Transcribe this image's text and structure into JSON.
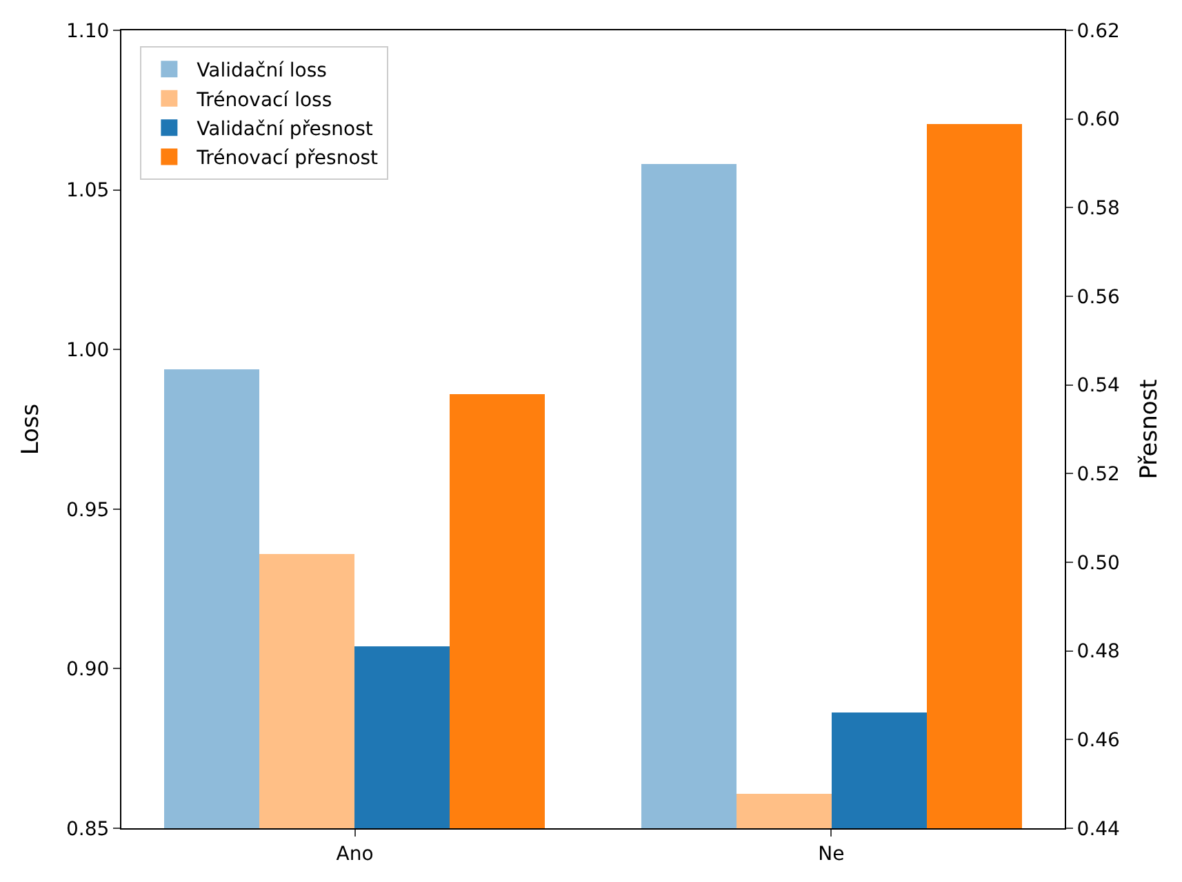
{
  "chart_data": {
    "type": "bar",
    "categories": [
      "Ano",
      "Ne"
    ],
    "ylabel": "Loss",
    "y2label": "Přesnost",
    "ylim": [
      0.85,
      1.1
    ],
    "yticks": [
      0.85,
      {
        "value": 0.9,
        "label": "0.90"
      },
      0.95,
      {
        "value": 1.0,
        "label": "1.00"
      },
      1.05,
      {
        "value": 1.1,
        "label": "1.10"
      }
    ],
    "y2lim": [
      0.44,
      0.62
    ],
    "y2ticks": [
      0.44,
      0.46,
      0.48,
      {
        "value": 0.5,
        "label": "0.50"
      },
      0.52,
      0.54,
      0.56,
      0.58,
      {
        "value": 0.6,
        "label": "0.60"
      },
      0.62
    ],
    "legend": "top left",
    "series": [
      {
        "name": "Validační loss",
        "color": "#8fbbda",
        "values": [
          0.994,
          1.058
        ]
      },
      {
        "name": "Trénovací loss",
        "color": "#ffbf86",
        "values": [
          0.936,
          0.861
        ]
      },
      {
        "name": "Validační přesnost",
        "color": "#1f77b4",
        "values": [
          0.481,
          0.466
        ],
        "axis": "y2"
      },
      {
        "name": "Trénovací přesnost",
        "color": "#ff7f0e",
        "values": [
          0.538,
          0.599
        ],
        "axis": "y2"
      }
    ]
  }
}
